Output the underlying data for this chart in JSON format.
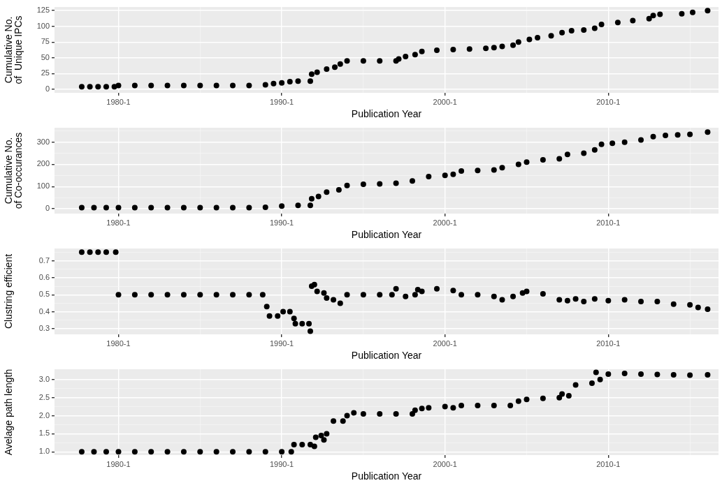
{
  "chart_data": [
    {
      "type": "scatter",
      "xlabel": "Publication Year",
      "ylabel": "Cumulative No.\nof  Unique IPCs",
      "color": "#000000",
      "marker": "circle",
      "grid": true,
      "xlim": [
        "1976-02",
        "2016-10"
      ],
      "xticks": [
        {
          "value": "1980-01",
          "label": "1980-1"
        },
        {
          "value": "1985-01",
          "label": null
        },
        {
          "value": "1990-01",
          "label": "1990-1"
        },
        {
          "value": "1995-01",
          "label": null
        },
        {
          "value": "2000-01",
          "label": "2000-1"
        },
        {
          "value": "2005-01",
          "label": null
        },
        {
          "value": "2010-01",
          "label": "2010-1"
        },
        {
          "value": "2015-01",
          "label": null
        }
      ],
      "ylim": [
        -5.7,
        130.7
      ],
      "yticks": [
        0,
        25,
        50,
        75,
        100,
        125
      ],
      "x": [
        "1977-10",
        "1978-04",
        "1978-10",
        "1979-04",
        "1979-10",
        "1980-01",
        "1981-01",
        "1982-01",
        "1983-01",
        "1984-01",
        "1985-01",
        "1986-01",
        "1987-01",
        "1988-01",
        "1989-01",
        "1989-07",
        "1990-01",
        "1990-07",
        "1991-01",
        "1991-10",
        "1991-11",
        "1992-03",
        "1992-10",
        "1993-04",
        "1993-08",
        "1994-01",
        "1995-01",
        "1996-01",
        "1997-01",
        "1997-03",
        "1997-08",
        "1998-03",
        "1998-08",
        "1999-07",
        "2000-07",
        "2001-07",
        "2002-07",
        "2003-01",
        "2003-07",
        "2004-03",
        "2004-07",
        "2005-03",
        "2005-09",
        "2006-07",
        "2007-03",
        "2007-10",
        "2008-07",
        "2009-03",
        "2009-08",
        "2010-08",
        "2011-07",
        "2012-07",
        "2012-10",
        "2013-03",
        "2014-07",
        "2015-03",
        "2016-02"
      ],
      "values": [
        4,
        4,
        4,
        4,
        4,
        6,
        6,
        6,
        6,
        6,
        6,
        6,
        6,
        6,
        7,
        9,
        10,
        12,
        13,
        13,
        24,
        27,
        32,
        35,
        40,
        45,
        45,
        45,
        45,
        48,
        52,
        55,
        60,
        62,
        63,
        64,
        65,
        66,
        68,
        70,
        75,
        79,
        82,
        85,
        90,
        93,
        94,
        97,
        103,
        106,
        109,
        112,
        117,
        119,
        120,
        122,
        125
      ]
    },
    {
      "type": "scatter",
      "xlabel": "Publication Year",
      "ylabel": "Cumulative No.\nof Co-occurances",
      "color": "#000000",
      "marker": "circle",
      "grid": true,
      "xlim": [
        "1976-02",
        "2016-10"
      ],
      "xticks": [
        {
          "value": "1980-01",
          "label": "1980-1"
        },
        {
          "value": "1985-01",
          "label": null
        },
        {
          "value": "1990-01",
          "label": "1990-1"
        },
        {
          "value": "1995-01",
          "label": null
        },
        {
          "value": "2000-01",
          "label": "2000-1"
        },
        {
          "value": "2005-01",
          "label": null
        },
        {
          "value": "2010-01",
          "label": "2010-1"
        },
        {
          "value": "2015-01",
          "label": null
        }
      ],
      "ylim": [
        -22,
        365
      ],
      "yticks": [
        0,
        {
          "value": 50,
          "label": null
        },
        100,
        {
          "value": 150,
          "label": null
        },
        200,
        {
          "value": 250,
          "label": null
        },
        300,
        {
          "value": 350,
          "label": null
        }
      ],
      "x": [
        "1977-10",
        "1978-07",
        "1979-04",
        "1980-01",
        "1981-01",
        "1982-01",
        "1983-01",
        "1984-01",
        "1985-01",
        "1986-01",
        "1987-01",
        "1988-01",
        "1989-01",
        "1990-01",
        "1991-01",
        "1991-10",
        "1991-11",
        "1992-04",
        "1992-10",
        "1993-07",
        "1994-01",
        "1995-01",
        "1996-01",
        "1997-01",
        "1998-01",
        "1999-01",
        "2000-01",
        "2000-07",
        "2001-01",
        "2002-01",
        "2003-01",
        "2003-07",
        "2004-07",
        "2005-01",
        "2006-01",
        "2007-01",
        "2007-07",
        "2008-07",
        "2009-03",
        "2009-08",
        "2010-04",
        "2011-01",
        "2012-01",
        "2012-10",
        "2013-07",
        "2014-04",
        "2015-01",
        "2016-02"
      ],
      "values": [
        5,
        5,
        5,
        5,
        5,
        5,
        5,
        5,
        5,
        5,
        5,
        5,
        6,
        12,
        15,
        15,
        45,
        55,
        75,
        85,
        105,
        110,
        112,
        115,
        125,
        145,
        150,
        155,
        170,
        172,
        175,
        185,
        200,
        210,
        220,
        225,
        245,
        250,
        265,
        290,
        295,
        300,
        310,
        325,
        330,
        333,
        335,
        345
      ]
    },
    {
      "type": "scatter",
      "xlabel": "Publication Year",
      "ylabel": "Clustring efficient",
      "color": "#000000",
      "marker": "circle",
      "grid": true,
      "xlim": [
        "1976-02",
        "2016-10"
      ],
      "xticks": [
        {
          "value": "1980-01",
          "label": "1980-1"
        },
        {
          "value": "1985-01",
          "label": null
        },
        {
          "value": "1990-01",
          "label": "1990-1"
        },
        {
          "value": "1995-01",
          "label": null
        },
        {
          "value": "2000-01",
          "label": "2000-1"
        },
        {
          "value": "2005-01",
          "label": null
        },
        {
          "value": "2010-01",
          "label": "2010-1"
        },
        {
          "value": "2015-01",
          "label": null
        }
      ],
      "ylim": [
        0.267,
        0.772
      ],
      "yticks": [
        0.3,
        {
          "value": 0.35,
          "label": null
        },
        0.4,
        {
          "value": 0.45,
          "label": null
        },
        0.5,
        {
          "value": 0.55,
          "label": null
        },
        0.6,
        {
          "value": 0.65,
          "label": null
        },
        0.7,
        {
          "value": 0.75,
          "label": null
        }
      ],
      "x": [
        "1977-10",
        "1978-04",
        "1978-10",
        "1979-04",
        "1979-11",
        "1980-01",
        "1981-01",
        "1982-01",
        "1983-01",
        "1984-01",
        "1985-01",
        "1986-01",
        "1987-01",
        "1988-01",
        "1988-11",
        "1989-02",
        "1989-04",
        "1989-10",
        "1990-02",
        "1990-07",
        "1990-10",
        "1990-11",
        "1991-04",
        "1991-09",
        "1991-10",
        "1991-11",
        "1992-01",
        "1992-03",
        "1992-08",
        "1992-10",
        "1993-03",
        "1993-08",
        "1994-01",
        "1995-01",
        "1996-01",
        "1996-10",
        "1997-01",
        "1997-08",
        "1998-03",
        "1998-05",
        "1998-08",
        "1999-07",
        "2000-07",
        "2001-01",
        "2002-01",
        "2003-01",
        "2003-07",
        "2004-03",
        "2004-10",
        "2005-01",
        "2006-01",
        "2007-01",
        "2007-07",
        "2008-01",
        "2008-07",
        "2009-03",
        "2010-01",
        "2011-01",
        "2012-01",
        "2013-01",
        "2014-01",
        "2015-01",
        "2015-07",
        "2016-02"
      ],
      "values": [
        0.75,
        0.75,
        0.75,
        0.75,
        0.75,
        0.5,
        0.5,
        0.5,
        0.5,
        0.5,
        0.5,
        0.5,
        0.5,
        0.5,
        0.5,
        0.43,
        0.375,
        0.375,
        0.4,
        0.4,
        0.36,
        0.33,
        0.33,
        0.33,
        0.285,
        0.55,
        0.56,
        0.52,
        0.51,
        0.48,
        0.47,
        0.45,
        0.5,
        0.5,
        0.5,
        0.5,
        0.535,
        0.49,
        0.5,
        0.53,
        0.52,
        0.535,
        0.525,
        0.5,
        0.5,
        0.49,
        0.47,
        0.49,
        0.51,
        0.52,
        0.505,
        0.47,
        0.465,
        0.475,
        0.46,
        0.475,
        0.465,
        0.47,
        0.46,
        0.46,
        0.445,
        0.44,
        0.425,
        0.415
      ]
    },
    {
      "type": "scatter",
      "xlabel": "Publication Year",
      "ylabel": "Avelage path length",
      "color": "#000000",
      "marker": "circle",
      "grid": true,
      "xlim": [
        "1976-02",
        "2016-10"
      ],
      "xticks": [
        {
          "value": "1980-01",
          "label": "1980-1"
        },
        {
          "value": "1985-01",
          "label": null
        },
        {
          "value": "1990-01",
          "label": "1990-1"
        },
        {
          "value": "1995-01",
          "label": null
        },
        {
          "value": "2000-01",
          "label": "2000-1"
        },
        {
          "value": "2005-01",
          "label": null
        },
        {
          "value": "2010-01",
          "label": "2010-1"
        },
        {
          "value": "2015-01",
          "label": null
        }
      ],
      "ylim": [
        0.909,
        3.286
      ],
      "yticks": [
        {
          "value": 1,
          "label": "1.0"
        },
        {
          "value": 1.25,
          "label": null
        },
        1.5,
        {
          "value": 1.75,
          "label": null
        },
        {
          "value": 2,
          "label": "2.0"
        },
        {
          "value": 2.25,
          "label": null
        },
        2.5,
        {
          "value": 2.75,
          "label": null
        },
        {
          "value": 3,
          "label": "3.0"
        }
      ],
      "x": [
        "1977-10",
        "1978-07",
        "1979-04",
        "1980-01",
        "1981-01",
        "1982-01",
        "1983-01",
        "1984-01",
        "1985-01",
        "1986-01",
        "1987-01",
        "1988-01",
        "1989-01",
        "1990-01",
        "1990-08",
        "1990-10",
        "1991-04",
        "1991-10",
        "1992-01",
        "1992-02",
        "1992-06",
        "1992-08",
        "1992-10",
        "1993-03",
        "1993-10",
        "1994-01",
        "1994-06",
        "1995-01",
        "1996-01",
        "1997-01",
        "1998-01",
        "1998-03",
        "1998-08",
        "1999-01",
        "2000-01",
        "2000-07",
        "2001-01",
        "2002-01",
        "2003-01",
        "2004-01",
        "2004-07",
        "2005-01",
        "2006-01",
        "2007-01",
        "2007-03",
        "2007-08",
        "2008-01",
        "2009-01",
        "2009-04",
        "2009-07",
        "2010-01",
        "2011-01",
        "2012-01",
        "2013-01",
        "2014-01",
        "2015-01",
        "2016-02"
      ],
      "values": [
        1.0,
        1.0,
        1.0,
        1.0,
        1.0,
        1.0,
        1.0,
        1.0,
        1.0,
        1.0,
        1.0,
        1.0,
        1.0,
        1.0,
        1.0,
        1.2,
        1.2,
        1.2,
        1.15,
        1.4,
        1.45,
        1.33,
        1.5,
        1.85,
        1.85,
        2.0,
        2.08,
        2.05,
        2.05,
        2.05,
        2.05,
        2.15,
        2.2,
        2.22,
        2.25,
        2.22,
        2.28,
        2.28,
        2.28,
        2.28,
        2.4,
        2.45,
        2.48,
        2.5,
        2.6,
        2.55,
        2.85,
        2.9,
        3.2,
        3.0,
        3.15,
        3.17,
        3.15,
        3.14,
        3.13,
        3.12,
        3.13
      ]
    }
  ]
}
